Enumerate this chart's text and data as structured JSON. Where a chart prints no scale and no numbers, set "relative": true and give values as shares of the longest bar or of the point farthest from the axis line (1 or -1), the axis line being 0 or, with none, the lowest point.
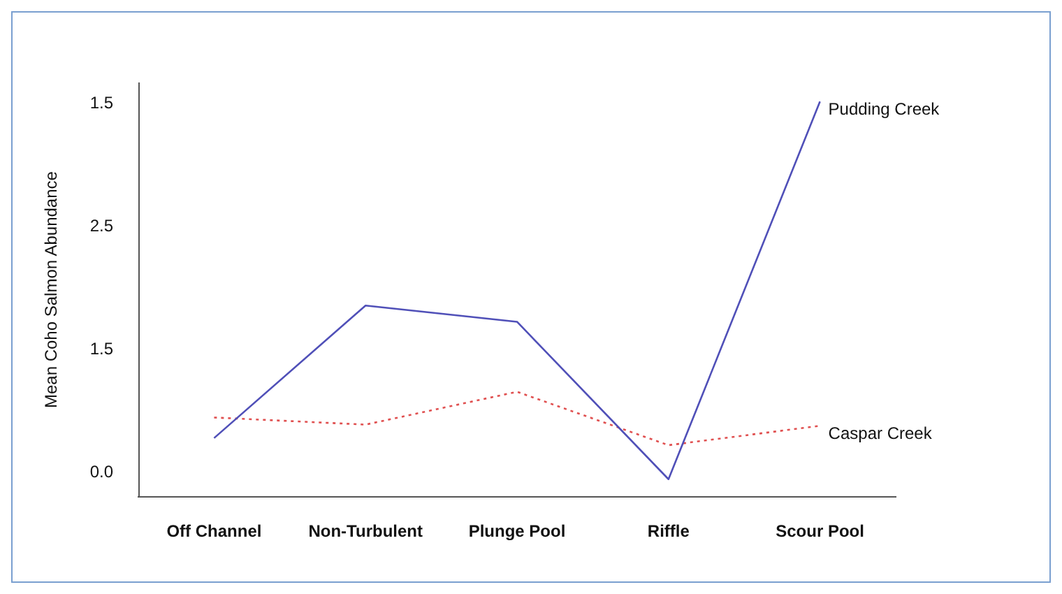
{
  "chart_data": {
    "type": "line",
    "ylabel": "Mean Coho Salmon Abundance",
    "categories": [
      "Off Channel",
      "Non-Turbulent",
      "Plunge Pool",
      "Riffle",
      "Scour Pool"
    ],
    "series": [
      {
        "name": "Pudding Creek",
        "color": "#5050b8",
        "line_style": "solid",
        "values": [
          0.149,
          0.484,
          0.443,
          0.045,
          1
        ]
      },
      {
        "name": "Caspar Creek",
        "color": "#e05050",
        "line_style": "dotted",
        "values": [
          0.201,
          0.183,
          0.266,
          0.131,
          0.18
        ]
      }
    ],
    "relative": true,
    "annotations": [
      "0.0",
      "1.5",
      "2.5",
      "1.5"
    ],
    "grid": false,
    "legend": false,
    "marker": "none"
  }
}
